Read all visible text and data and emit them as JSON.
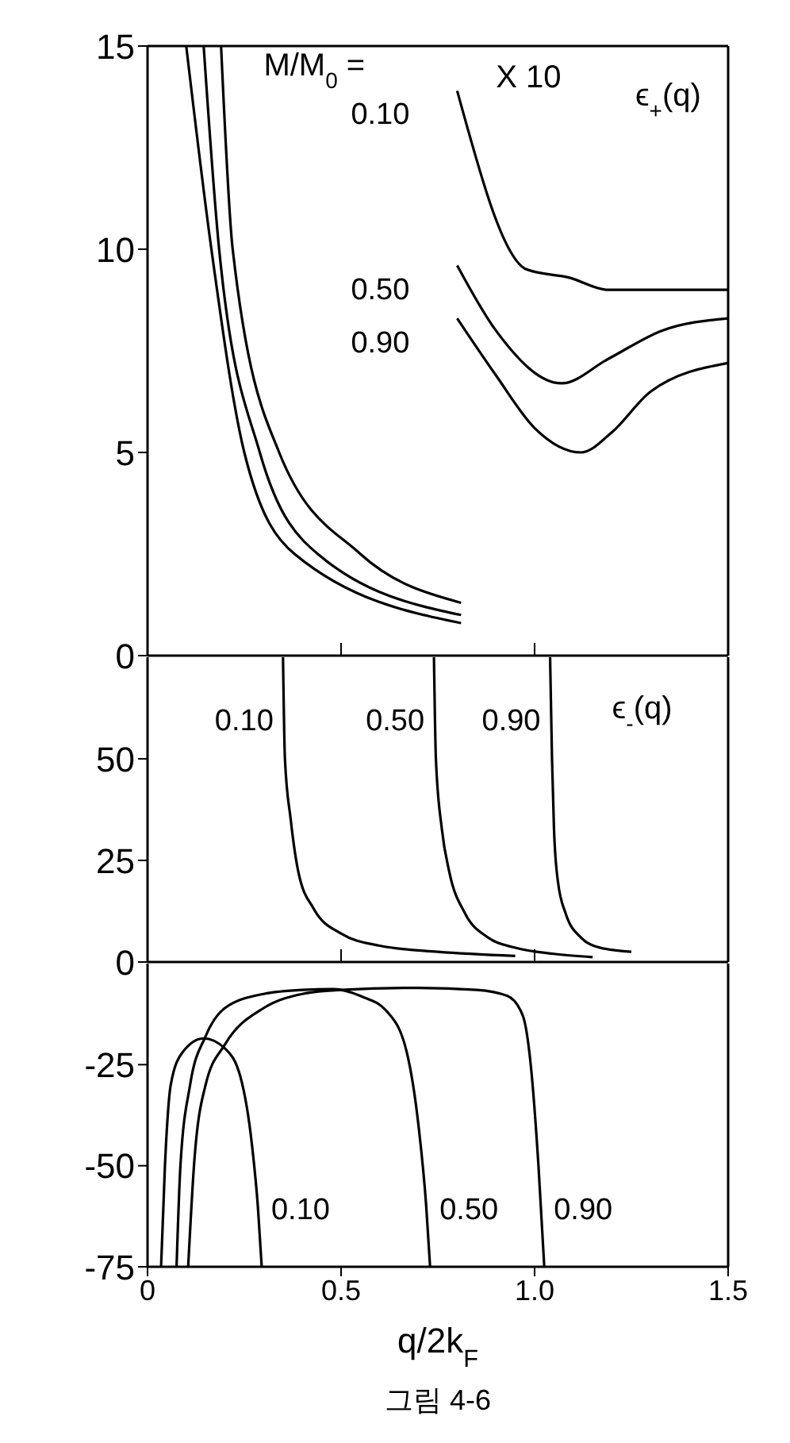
{
  "chart_data": [
    {
      "type": "line",
      "xlim": [
        0,
        1.5
      ],
      "xticks": [
        0,
        0.5,
        1,
        1.5
      ],
      "ylim": [
        0,
        15
      ],
      "yticks": [
        0,
        5,
        10,
        15
      ],
      "tick_labels": "y",
      "marker": "none",
      "line_style": "solid",
      "annotations": [
        "M/M$_{0}$ =",
        "X 10",
        "ϵ$_{+}$(q)"
      ],
      "series": [
        {
          "name": "0.10",
          "color": "#000000",
          "x": [
            0.19,
            0.22,
            0.34,
            0.55,
            0.81,
            0.805,
            0.8,
            0.98,
            1.09,
            1.19,
            1.5
          ],
          "values": [
            15,
            10,
            5,
            2.5,
            1.3,
            null,
            13.9,
            9.5,
            9.3,
            9.0,
            9.0
          ]
        },
        {
          "name": "0.50",
          "color": "#000000",
          "x": [
            0.145,
            0.185,
            0.29,
            0.44,
            0.81,
            0.805,
            0.8,
            0.9,
            1.07,
            1.19,
            1.33,
            1.5
          ],
          "values": [
            15,
            10,
            5,
            2.5,
            1.0,
            null,
            9.6,
            8.0,
            6.7,
            7.3,
            8.0,
            8.3
          ]
        },
        {
          "name": "0.90",
          "color": "#000000",
          "x": [
            0.1,
            0.165,
            0.25,
            0.38,
            0.81,
            0.805,
            0.8,
            0.9,
            1.0,
            1.12,
            1.2,
            1.3,
            1.5
          ],
          "values": [
            15,
            10,
            5,
            2.5,
            0.8,
            null,
            8.3,
            6.9,
            5.6,
            5.0,
            5.5,
            6.5,
            7.2
          ]
        }
      ]
    },
    {
      "type": "line",
      "xlim": [
        0,
        1.5
      ],
      "xticks": [
        0,
        0.5,
        1,
        1.5
      ],
      "ylim": [
        0,
        75
      ],
      "yticks": [
        0,
        25,
        50
      ],
      "tick_labels": "y",
      "marker": "none",
      "line_style": "solid",
      "annotations": [
        "ϵ$_{-}$(q)"
      ],
      "series": [
        {
          "name": "0.10",
          "color": "#000000",
          "x": [
            0.35,
            0.355,
            0.37,
            0.39,
            0.43,
            0.5,
            0.6,
            0.75,
            0.95
          ],
          "values": [
            75,
            50,
            35,
            22,
            13,
            7,
            4,
            2.5,
            1.5
          ]
        },
        {
          "name": "0.50",
          "color": "#000000",
          "x": [
            0.74,
            0.745,
            0.76,
            0.78,
            0.82,
            0.88,
            0.95,
            1.05,
            1.15
          ],
          "values": [
            75,
            50,
            33,
            22,
            12,
            6,
            3.5,
            2,
            1.2
          ]
        },
        {
          "name": "0.90",
          "color": "#000000",
          "x": [
            1.04,
            1.045,
            1.05,
            1.06,
            1.08,
            1.12,
            1.17,
            1.25
          ],
          "values": [
            75,
            50,
            33,
            20,
            12,
            6,
            3.5,
            2.5
          ]
        }
      ]
    },
    {
      "type": "line",
      "xlabel": "q/2k$_{F}$",
      "xlim": [
        0,
        1.5
      ],
      "xticks": [
        0,
        0.5,
        {
          "value": 1,
          "label": "1.0"
        },
        1.5
      ],
      "ylim": [
        -75,
        0
      ],
      "yticks": [
        -75,
        -50,
        -25
      ],
      "marker": "none",
      "line_style": "solid",
      "annotations": [
        "그림 4-6"
      ],
      "series": [
        {
          "name": "0.10",
          "color": "#000000",
          "x": [
            0.035,
            0.045,
            0.06,
            0.09,
            0.145,
            0.2,
            0.24,
            0.27,
            0.285,
            0.295
          ],
          "values": [
            -75,
            -50,
            -30,
            -22,
            -18.5,
            -21,
            -28,
            -45,
            -60,
            -75
          ]
        },
        {
          "name": "0.50",
          "color": "#000000",
          "x": [
            0.075,
            0.085,
            0.11,
            0.15,
            0.2,
            0.3,
            0.4,
            0.48,
            0.55,
            0.62,
            0.67,
            0.7,
            0.72,
            0.73
          ],
          "values": [
            -75,
            -50,
            -30,
            -18,
            -11,
            -7.5,
            -6.5,
            -6.3,
            -8,
            -12,
            -22,
            -40,
            -60,
            -75
          ]
        },
        {
          "name": "0.90",
          "color": "#000000",
          "x": [
            0.105,
            0.12,
            0.15,
            0.2,
            0.3,
            0.4,
            0.5,
            0.7,
            0.85,
            0.93,
            0.97,
            0.99,
            1.01,
            1.025
          ],
          "values": [
            -75,
            -50,
            -30,
            -20,
            -11,
            -7.5,
            -6.5,
            -6,
            -6.5,
            -8,
            -13,
            -25,
            -50,
            -75
          ]
        }
      ]
    }
  ]
}
